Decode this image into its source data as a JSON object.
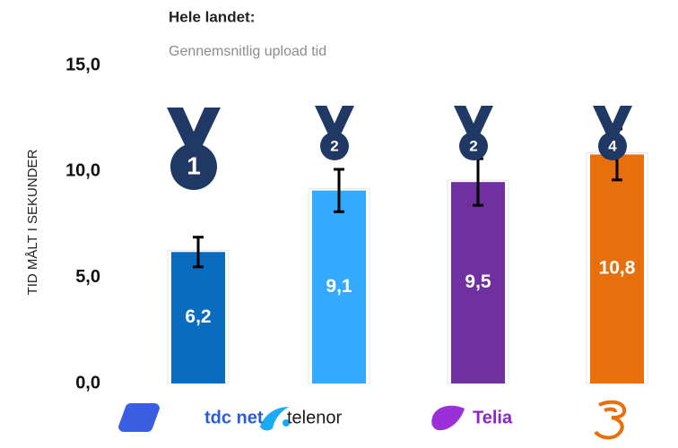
{
  "chart_data": {
    "type": "bar",
    "title": "Hele landet:",
    "subtitle": "Gennemsnitlig upload tid",
    "y_label": "TID MÅLT I SEKUNDER",
    "categories": [
      "tdc net",
      "telenor",
      "Telia",
      null
    ],
    "values": [
      6.2,
      9.1,
      9.5,
      10.8
    ],
    "value_labels": [
      "6,2",
      "9,1",
      "9,5",
      "10,8"
    ],
    "errors": [
      0.7,
      1.0,
      1.1,
      1.2
    ],
    "ranks": [
      1,
      2,
      2,
      4
    ],
    "colors": [
      "#0a6cbf",
      "#33aaff",
      "#7030a0",
      "#e8700c"
    ],
    "ylim": [
      0,
      15
    ],
    "yticks": [
      {
        "value": 0,
        "label": "0,0"
      },
      {
        "value": 5,
        "label": "5,0"
      },
      {
        "value": 10,
        "label": "10,0"
      },
      {
        "value": 15,
        "label": "15,0"
      }
    ],
    "grid": false
  }
}
